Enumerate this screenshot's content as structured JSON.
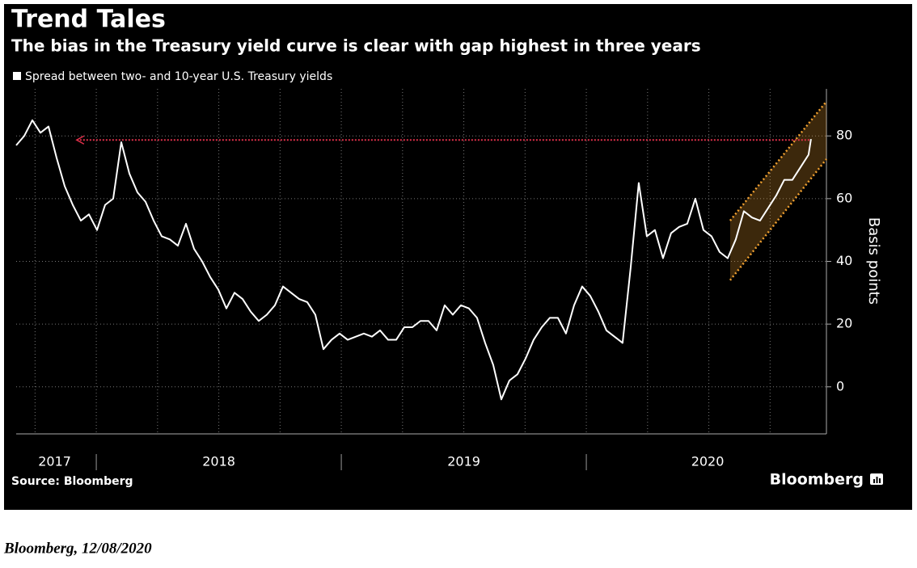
{
  "chart_data": {
    "type": "line",
    "title": "Trend Tales",
    "subtitle": "The bias in the Treasury yield curve is clear with gap highest in three years",
    "y_label": "Basis points",
    "source": "Source: Bloomberg",
    "brand": "Bloomberg",
    "x": [
      2017.673,
      2017.706,
      2017.739,
      2017.772,
      2017.805,
      2017.838,
      2017.871,
      2017.904,
      2017.937,
      2017.97,
      2018.003,
      2018.036,
      2018.069,
      2018.102,
      2018.135,
      2018.168,
      2018.201,
      2018.234,
      2018.267,
      2018.3,
      2018.333,
      2018.366,
      2018.399,
      2018.432,
      2018.465,
      2018.498,
      2018.531,
      2018.564,
      2018.597,
      2018.63,
      2018.663,
      2018.696,
      2018.729,
      2018.762,
      2018.795,
      2018.828,
      2018.861,
      2018.894,
      2018.927,
      2018.96,
      2018.993,
      2019.026,
      2019.059,
      2019.092,
      2019.125,
      2019.158,
      2019.191,
      2019.224,
      2019.257,
      2019.29,
      2019.323,
      2019.356,
      2019.389,
      2019.422,
      2019.455,
      2019.488,
      2019.521,
      2019.554,
      2019.587,
      2019.62,
      2019.653,
      2019.686,
      2019.719,
      2019.752,
      2019.785,
      2019.818,
      2019.851,
      2019.884,
      2019.917,
      2019.95,
      2019.983,
      2020.016,
      2020.049,
      2020.082,
      2020.115,
      2020.148,
      2020.181,
      2020.214,
      2020.247,
      2020.28,
      2020.313,
      2020.346,
      2020.379,
      2020.412,
      2020.445,
      2020.478,
      2020.511,
      2020.544,
      2020.577,
      2020.61,
      2020.643,
      2020.676,
      2020.709,
      2020.742,
      2020.775,
      2020.808,
      2020.841,
      2020.874,
      2020.907,
      2020.917
    ],
    "series": [
      {
        "name": "Spread between two- and 10-year U.S. Treasury yields",
        "color": "#ffffff",
        "values": [
          77,
          80,
          85,
          81,
          83,
          73,
          64,
          58,
          53,
          55,
          50,
          58,
          60,
          78,
          68,
          62,
          59,
          53,
          48,
          47,
          45,
          52,
          44,
          40,
          35,
          31,
          25,
          30,
          28,
          24,
          21,
          23,
          26,
          32,
          30,
          28,
          27,
          23,
          12,
          15,
          17,
          15,
          16,
          17,
          16,
          18,
          15,
          15,
          19,
          19,
          21,
          21,
          18,
          26,
          23,
          26,
          25,
          22,
          14,
          7,
          -4,
          2,
          4,
          9,
          15,
          19,
          22,
          22,
          17,
          26,
          32,
          29,
          24,
          18,
          16,
          14,
          38,
          65,
          48,
          50,
          41,
          49,
          51,
          52,
          60,
          50,
          48,
          43,
          41,
          47,
          56,
          54,
          53,
          57,
          61,
          66,
          66,
          70,
          74,
          79
        ]
      }
    ],
    "xlim": [
      2017.673,
      2020.98
    ],
    "xticks": [
      {
        "value": 2017.83,
        "label": "2017"
      },
      {
        "value": 2018.5,
        "label": "2018"
      },
      {
        "value": 2019.5,
        "label": "2019"
      },
      {
        "value": 2020.495,
        "label": "2020"
      }
    ],
    "xseparators": [
      2018,
      2019,
      2020
    ],
    "xgrid": [
      2017.75,
      2018,
      2018.25,
      2018.5,
      2018.75,
      2019,
      2019.25,
      2019.5,
      2019.75,
      2020,
      2020.25,
      2020.5,
      2020.75
    ],
    "ylim": [
      -15,
      95
    ],
    "yticks": [
      0,
      20,
      40,
      60,
      80
    ],
    "grid": true,
    "reference_line": {
      "y": 78.7,
      "x": [
        2017.92,
        2020.917
      ],
      "color": "#e0304a"
    },
    "channel": {
      "x": [
        2020.587,
        2020.98
      ],
      "upper": [
        53,
        91
      ],
      "lower": [
        34,
        72.6
      ],
      "color": "#f0a030"
    }
  },
  "caption": "Bloomberg, 12/08/2020"
}
